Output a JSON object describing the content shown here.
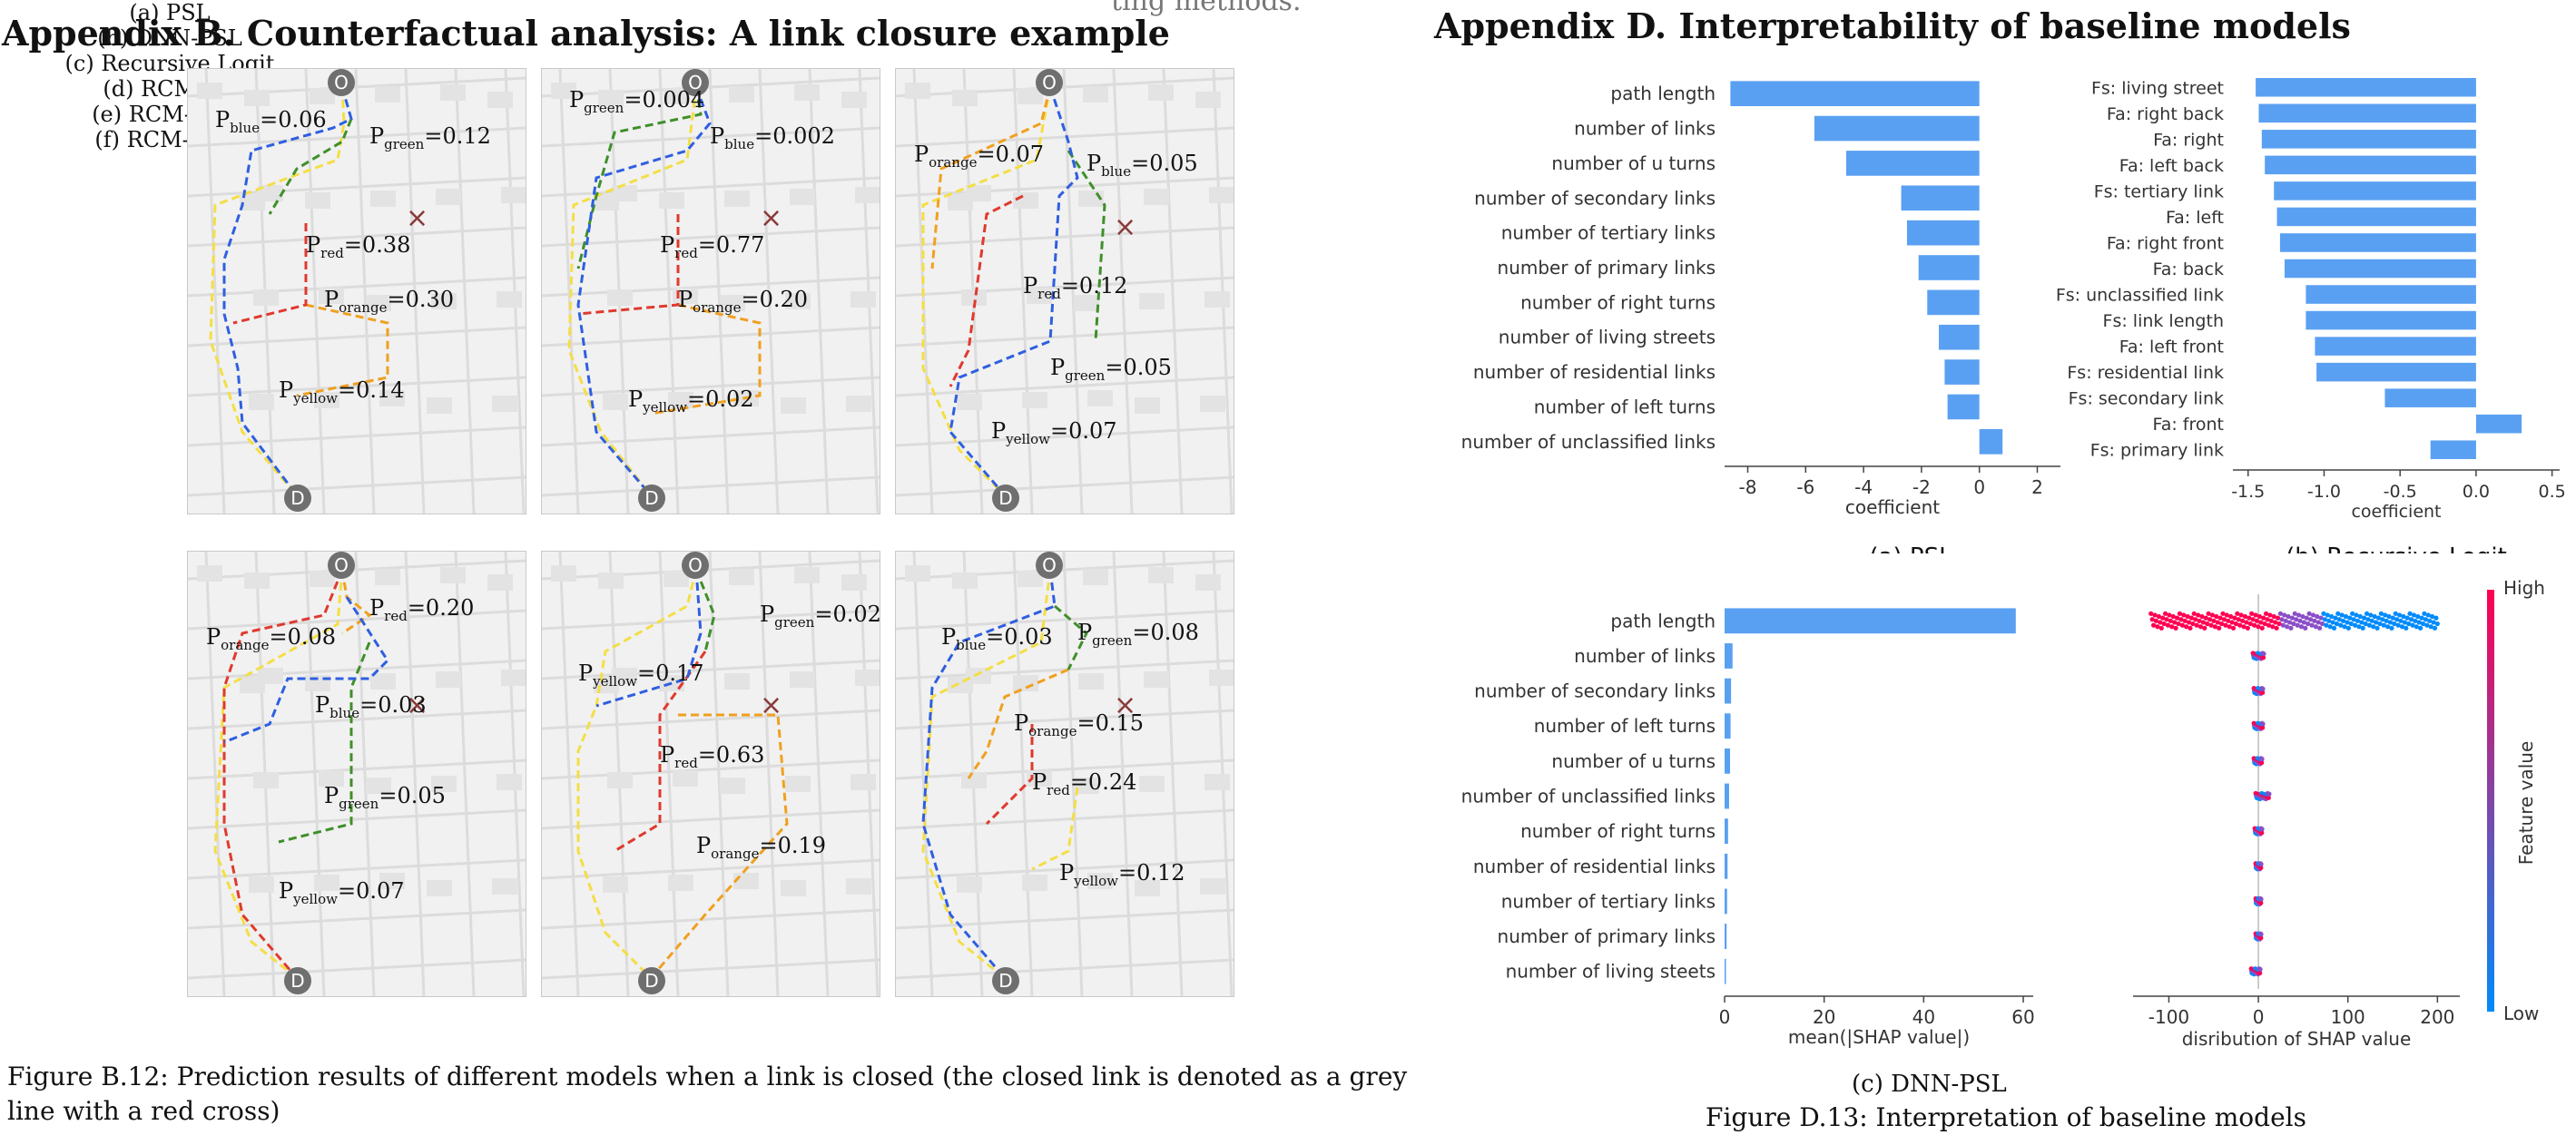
{
  "page": {
    "heading_left": "Appendix B. Counterfactual analysis: A link closure example",
    "heading_right": "Appendix D. Interpretability of baseline models",
    "clipped_text": "ting methods.",
    "figure_b12_caption": "Figure B.12: Prediction results of different models when a link is closed (the closed link is denoted as a grey line with a red cross)",
    "figure_d13_caption": "Figure D.13: Interpretation of baseline models"
  },
  "maps": [
    {
      "caption": "(a) PSL",
      "labels": [
        {
          "base": "P",
          "sub": "blue",
          "val": "=0.06"
        },
        {
          "base": "P",
          "sub": "green",
          "val": "=0.12"
        },
        {
          "base": "P",
          "sub": "red",
          "val": "=0.38"
        },
        {
          "base": "P",
          "sub": "orange",
          "val": "=0.30"
        },
        {
          "base": "P",
          "sub": "yellow",
          "val": "=0.14"
        }
      ]
    },
    {
      "caption": "(b) DNN-PSL",
      "labels": [
        {
          "base": "P",
          "sub": "green",
          "val": "=0.004"
        },
        {
          "base": "P",
          "sub": "blue",
          "val": "=0.002"
        },
        {
          "base": "P",
          "sub": "red",
          "val": "=0.77"
        },
        {
          "base": "P",
          "sub": "orange",
          "val": "=0.20"
        },
        {
          "base": "P",
          "sub": "yellow",
          "val": "=0.02"
        }
      ]
    },
    {
      "caption": "(c) Recursive Logit",
      "labels": [
        {
          "base": "P",
          "sub": "orange",
          "val": "=0.07"
        },
        {
          "base": "P",
          "sub": "blue",
          "val": "=0.05"
        },
        {
          "base": "P",
          "sub": "red",
          "val": "=0.12"
        },
        {
          "base": "P",
          "sub": "green",
          "val": "=0.05"
        },
        {
          "base": "P",
          "sub": "yellow",
          "val": "=0.07"
        }
      ]
    },
    {
      "caption": "(d) RCM-BC",
      "labels": [
        {
          "base": "P",
          "sub": "orange",
          "val": "=0.08"
        },
        {
          "base": "P",
          "sub": "red",
          "val": "=0.20"
        },
        {
          "base": "P",
          "sub": "blue",
          "val": "=0.03"
        },
        {
          "base": "P",
          "sub": "green",
          "val": "=0.05"
        },
        {
          "base": "P",
          "sub": "yellow",
          "val": "=0.07"
        }
      ]
    },
    {
      "caption": "(e) RCM-GAIL",
      "labels": [
        {
          "base": "P",
          "sub": "green",
          "val": "=0.02"
        },
        {
          "base": "P",
          "sub": "yellow",
          "val": "=0.17"
        },
        {
          "base": "P",
          "sub": "red",
          "val": "=0.63"
        },
        {
          "base": "P",
          "sub": "orange",
          "val": "=0.19"
        }
      ]
    },
    {
      "caption": "(f) RCM-AIRL",
      "labels": [
        {
          "base": "P",
          "sub": "blue",
          "val": "=0.03"
        },
        {
          "base": "P",
          "sub": "green",
          "val": "=0.08"
        },
        {
          "base": "P",
          "sub": "orange",
          "val": "=0.15"
        },
        {
          "base": "P",
          "sub": "red",
          "val": "=0.24"
        },
        {
          "base": "P",
          "sub": "yellow",
          "val": "=0.12"
        }
      ]
    }
  ],
  "map_markers": {
    "origin": "O",
    "destination": "D",
    "closed_link": "×"
  },
  "colors": {
    "bar": "#5aa0f2",
    "blue": "#2f5fe0",
    "green": "#3f8f2a",
    "red": "#e0392e",
    "orange": "#f0a020",
    "yellow": "#f4de45",
    "shap_high": "#ff0052",
    "shap_low": "#008afb"
  },
  "chart_data": [
    {
      "type": "bar",
      "orientation": "horizontal",
      "caption": "(a) PSL",
      "xlabel": "coefficient",
      "xlim": [
        -8.8,
        2.8
      ],
      "xticks": [
        -8,
        -6,
        -4,
        -2,
        0,
        2
      ],
      "categories": [
        "path length",
        "number of links",
        "number of u turns",
        "number of secondary links",
        "number of tertiary links",
        "number of primary links",
        "number of right turns",
        "number of living streets",
        "number of residential links",
        "number of left turns",
        "number of unclassified links"
      ],
      "values": [
        -8.6,
        -5.7,
        -4.6,
        -2.7,
        -2.5,
        -2.1,
        -1.8,
        -1.4,
        -1.2,
        -1.1,
        0.8
      ]
    },
    {
      "type": "bar",
      "orientation": "horizontal",
      "caption": "(b) Recursive Logit",
      "xlabel": "coefficient",
      "xlim": [
        -1.6,
        0.55
      ],
      "xticks": [
        -1.5,
        -1.0,
        -0.5,
        0.0,
        0.5
      ],
      "categories": [
        "Fs: living street",
        "Fa: right back",
        "Fa: right",
        "Fa: left back",
        "Fs: tertiary link",
        "Fa: left",
        "Fa: right front",
        "Fa: back",
        "Fs: unclassified link",
        "Fs: link length",
        "Fa: left front",
        "Fs: residential link",
        "Fs: secondary link",
        "Fa: front",
        "Fs: primary link"
      ],
      "values": [
        -1.45,
        -1.43,
        -1.41,
        -1.39,
        -1.33,
        -1.31,
        -1.29,
        -1.26,
        -1.12,
        -1.12,
        -1.06,
        -1.05,
        -0.6,
        0.3,
        -0.3
      ]
    },
    {
      "type": "bar",
      "orientation": "horizontal",
      "caption": "(c) DNN-PSL",
      "xlabel": "mean(|SHAP value|)",
      "xlim": [
        0,
        62
      ],
      "xticks": [
        0,
        20,
        40,
        60
      ],
      "categories": [
        "path length",
        "number of links",
        "number of secondary links",
        "number of left turns",
        "number of u turns",
        "number of unclassified links",
        "number of right turns",
        "number of residential links",
        "number of tertiary links",
        "number of primary links",
        "number of living steets"
      ],
      "values": [
        58.5,
        1.6,
        1.3,
        1.2,
        1.1,
        0.9,
        0.7,
        0.6,
        0.5,
        0.4,
        0.2
      ]
    },
    {
      "type": "scatter",
      "subtype": "shap-beeswarm",
      "xlabel": "disribution of SHAP value",
      "xlim": [
        -140,
        225
      ],
      "xticks": [
        -100,
        0,
        100,
        200
      ],
      "colorbar": {
        "label": "Feature value",
        "high": "High",
        "low": "Low"
      },
      "rows": [
        {
          "feature": "path length",
          "min": -120,
          "max": 200
        },
        {
          "feature": "number of links",
          "min": -6,
          "max": 6
        },
        {
          "feature": "number of secondary links",
          "min": -5,
          "max": 5
        },
        {
          "feature": "number of left turns",
          "min": -5,
          "max": 5
        },
        {
          "feature": "number of u turns",
          "min": -5,
          "max": 4
        },
        {
          "feature": "number of unclassified links",
          "min": -3,
          "max": 12
        },
        {
          "feature": "number of right turns",
          "min": -4,
          "max": 4
        },
        {
          "feature": "number of residential links",
          "min": -3,
          "max": 3
        },
        {
          "feature": "number of tertiary links",
          "min": -3,
          "max": 3
        },
        {
          "feature": "number of primary links",
          "min": -3,
          "max": 3
        },
        {
          "feature": "number of living steets",
          "min": -8,
          "max": 2
        }
      ]
    }
  ]
}
